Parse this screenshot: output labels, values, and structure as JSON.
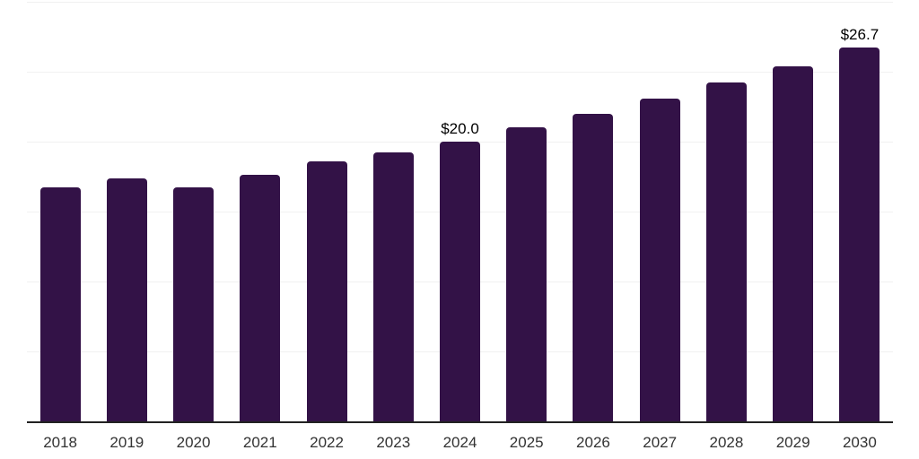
{
  "chart_data": {
    "type": "bar",
    "title": "",
    "xlabel": "",
    "ylabel": "",
    "categories": [
      "2018",
      "2019",
      "2020",
      "2021",
      "2022",
      "2023",
      "2024",
      "2025",
      "2026",
      "2027",
      "2028",
      "2029",
      "2030"
    ],
    "values": [
      16.7,
      17.4,
      16.7,
      17.6,
      18.6,
      19.2,
      20.0,
      21.0,
      22.0,
      23.1,
      24.2,
      25.4,
      26.7
    ],
    "annotations": [
      {
        "category": "2024",
        "label": "$20.0"
      },
      {
        "category": "2030",
        "label": "$26.7"
      }
    ],
    "ylim": [
      0,
      30
    ],
    "grid_step": 5,
    "grid_on": true,
    "legend": "none",
    "colors": {
      "bar": "#331247",
      "gridline": "#f1f1f1",
      "axis_line": "#222222",
      "tick_label": "#333333",
      "value_label": "#000000",
      "background": "#ffffff"
    }
  }
}
